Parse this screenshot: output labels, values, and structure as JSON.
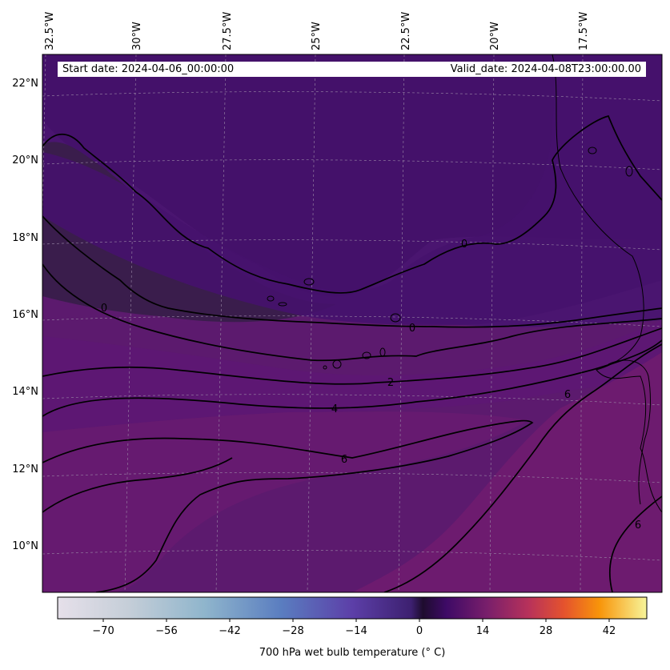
{
  "map": {
    "longitude_labels": [
      "32.5°W",
      "30°W",
      "27.5°W",
      "25°W",
      "22.5°W",
      "20°W",
      "17.5°W"
    ],
    "latitude_labels": [
      "22°N",
      "20°N",
      "18°N",
      "16°N",
      "14°N",
      "12°N",
      "10°N"
    ],
    "start_date": "Start date: 2024-04-06_00:00:00",
    "valid_date": "Valid_date: 2024-04-08T23:00:00.00",
    "contour_labels": [
      "0",
      "0",
      "0",
      "2",
      "4",
      "6",
      "6",
      "6"
    ],
    "gridlines": true,
    "colormap": "inferno-like (grey-blue below 0, purple-magenta-orange-yellow above)"
  },
  "colorbar": {
    "ticks": [
      "−70",
      "−56",
      "−42",
      "−28",
      "−14",
      "0",
      "14",
      "28",
      "42"
    ],
    "title": "700 hPa wet bulb temperature (° C)",
    "min": -78,
    "max": 48
  },
  "colors": {
    "field_cold": "#3a1d4c",
    "field_mid": "#4e1670",
    "field_warm": "#6b1a6e",
    "contour": "#000000"
  }
}
